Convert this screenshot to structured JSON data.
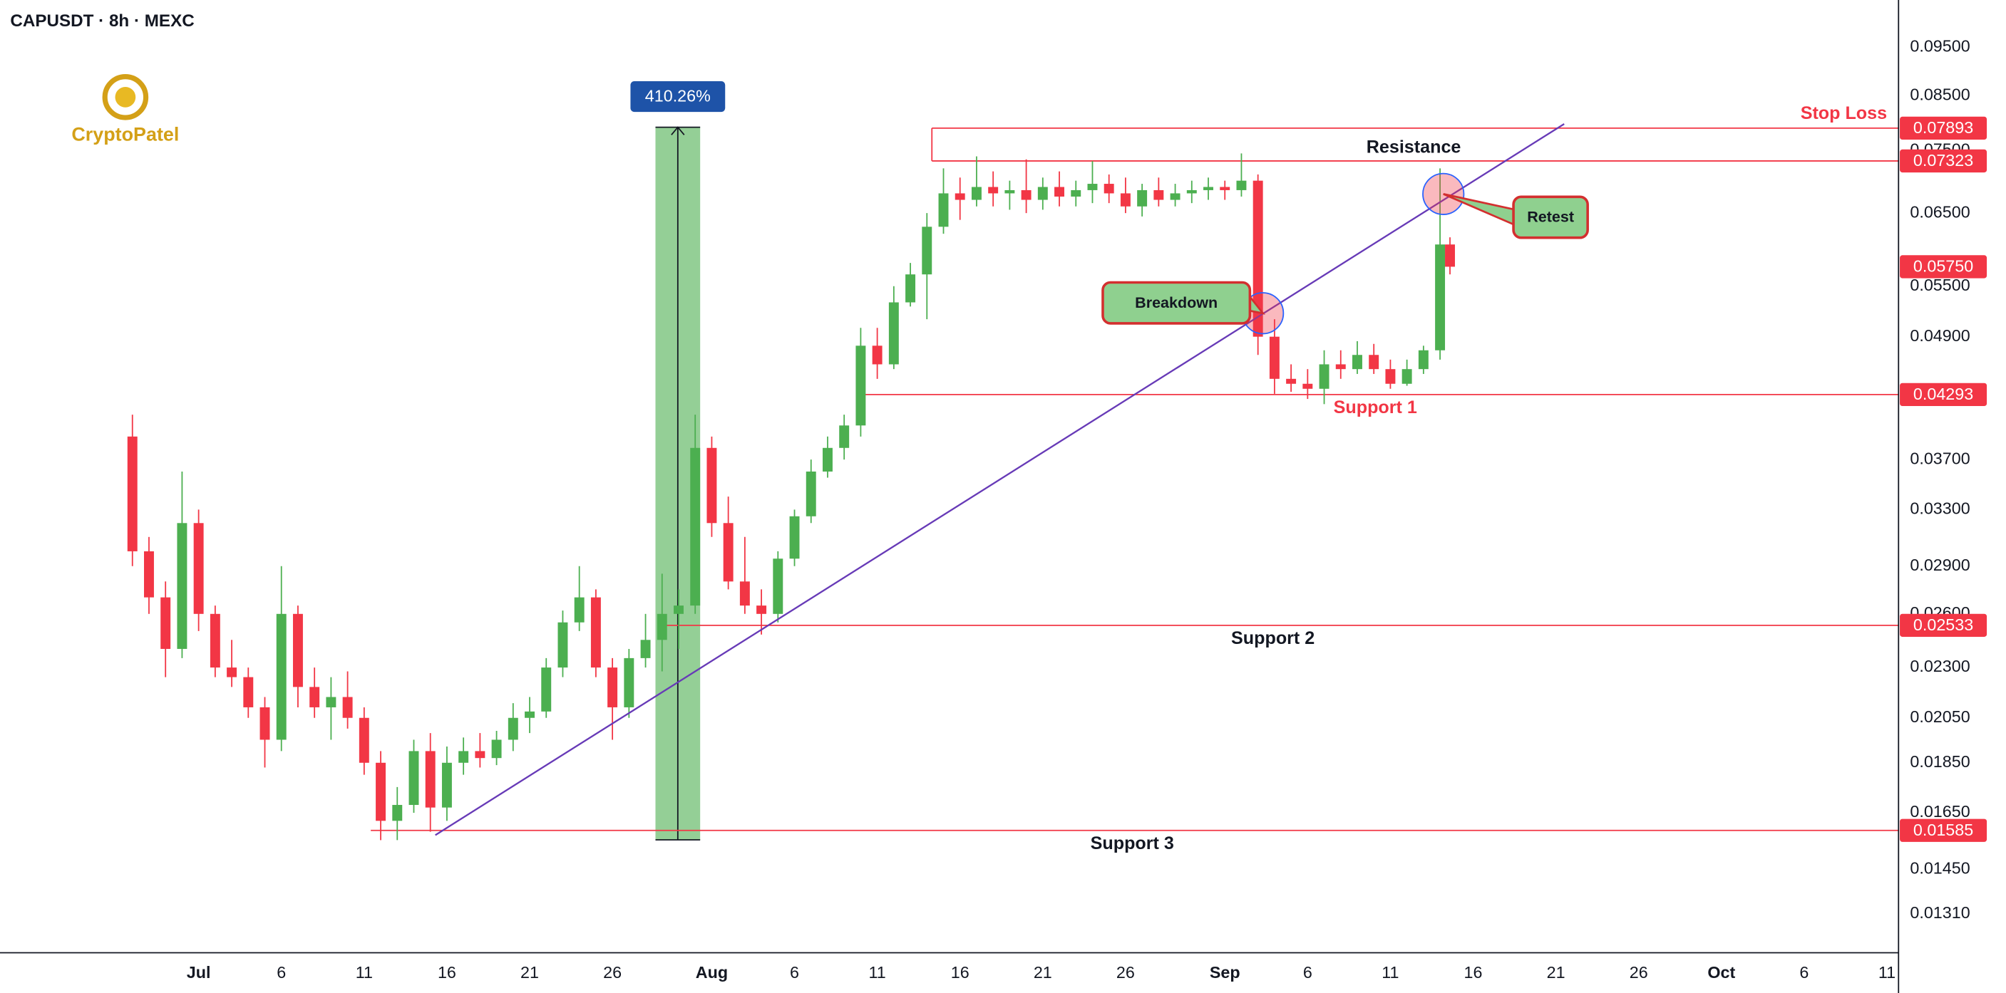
{
  "title": "CAPUSDT · 8h · MEXC",
  "logo": "CryptoPatel",
  "chart_data": {
    "type": "candlestick",
    "log_scale": true,
    "grid": false,
    "xlim": [
      -12,
      102.7
    ],
    "ylim": [
      0.012,
      0.1058
    ],
    "xticks": [
      {
        "value": 0,
        "label": "Jul"
      },
      {
        "value": 5,
        "label": "6"
      },
      {
        "value": 10,
        "label": "11"
      },
      {
        "value": 15,
        "label": "16"
      },
      {
        "value": 20,
        "label": "21"
      },
      {
        "value": 25,
        "label": "26"
      },
      {
        "value": 31,
        "label": "Aug"
      },
      {
        "value": 36,
        "label": "6"
      },
      {
        "value": 41,
        "label": "11"
      },
      {
        "value": 46,
        "label": "16"
      },
      {
        "value": 51,
        "label": "21"
      },
      {
        "value": 56,
        "label": "26"
      },
      {
        "value": 62,
        "label": "Sep"
      },
      {
        "value": 67,
        "label": "6"
      },
      {
        "value": 72,
        "label": "11"
      },
      {
        "value": 77,
        "label": "16"
      },
      {
        "value": 82,
        "label": "21"
      },
      {
        "value": 87,
        "label": "26"
      },
      {
        "value": 92,
        "label": "Oct"
      },
      {
        "value": 97,
        "label": "6"
      },
      {
        "value": 102,
        "label": "11"
      }
    ],
    "yticks": [
      {
        "value": 0.095,
        "label": "0.09500"
      },
      {
        "value": 0.085,
        "label": "0.08500"
      },
      {
        "value": 0.075,
        "label": "0.07500"
      },
      {
        "value": 0.065,
        "label": "0.06500"
      },
      {
        "value": 0.055,
        "label": "0.05500"
      },
      {
        "value": 0.049,
        "label": "0.04900"
      },
      {
        "value": 0.037,
        "label": "0.03700"
      },
      {
        "value": 0.033,
        "label": "0.03300"
      },
      {
        "value": 0.029,
        "label": "0.02900"
      },
      {
        "value": 0.026,
        "label": "0.02600"
      },
      {
        "value": 0.023,
        "label": "0.02300"
      },
      {
        "value": 0.0205,
        "label": "0.02050"
      },
      {
        "value": 0.0185,
        "label": "0.01850"
      },
      {
        "value": 0.0165,
        "label": "0.01650"
      },
      {
        "value": 0.0145,
        "label": "0.01450"
      },
      {
        "value": 0.0131,
        "label": "0.01310"
      }
    ],
    "up_color": "#4caf50",
    "down_color": "#f23645",
    "x": [
      -4,
      -3,
      -2,
      -1,
      0,
      1,
      2,
      3,
      4,
      5,
      6,
      7,
      8,
      9,
      10,
      11,
      12,
      13,
      14,
      15,
      16,
      17,
      18,
      19,
      20,
      21,
      22,
      23,
      24,
      25,
      26,
      27,
      28,
      29,
      30,
      31,
      32,
      33,
      34,
      35,
      36,
      37,
      38,
      39,
      40,
      41,
      42,
      43,
      44,
      45,
      46,
      47,
      48,
      49,
      50,
      51,
      52,
      53,
      54,
      55,
      56,
      57,
      58,
      59,
      60,
      61,
      62,
      63,
      64,
      65,
      66,
      67,
      68,
      69,
      70,
      71,
      72,
      73,
      74,
      75,
      75.6
    ],
    "open": [
      0.039,
      0.03,
      0.027,
      0.024,
      0.032,
      0.026,
      0.023,
      0.0225,
      0.021,
      0.0195,
      0.026,
      0.022,
      0.021,
      0.0215,
      0.0205,
      0.0185,
      0.0162,
      0.0168,
      0.019,
      0.0167,
      0.0185,
      0.019,
      0.0187,
      0.0195,
      0.0205,
      0.0208,
      0.023,
      0.0255,
      0.027,
      0.023,
      0.021,
      0.0235,
      0.0245,
      0.026,
      0.0265,
      0.038,
      0.032,
      0.028,
      0.0265,
      0.026,
      0.0295,
      0.0325,
      0.036,
      0.038,
      0.04,
      0.048,
      0.046,
      0.053,
      0.0565,
      0.063,
      0.068,
      0.067,
      0.069,
      0.068,
      0.0685,
      0.067,
      0.069,
      0.0675,
      0.0685,
      0.0695,
      0.068,
      0.066,
      0.0685,
      0.067,
      0.068,
      0.0685,
      0.069,
      0.0685,
      0.07,
      0.049,
      0.0445,
      0.044,
      0.0435,
      0.046,
      0.0455,
      0.047,
      0.0455,
      0.044,
      0.0455,
      0.0475,
      0.0605
    ],
    "high": [
      0.041,
      0.031,
      0.028,
      0.036,
      0.033,
      0.0265,
      0.0245,
      0.023,
      0.0215,
      0.029,
      0.0265,
      0.023,
      0.0225,
      0.0228,
      0.021,
      0.019,
      0.0175,
      0.0195,
      0.0198,
      0.0192,
      0.0196,
      0.0198,
      0.0199,
      0.0212,
      0.0215,
      0.0235,
      0.0262,
      0.029,
      0.0275,
      0.0235,
      0.024,
      0.026,
      0.0285,
      0.0275,
      0.041,
      0.039,
      0.034,
      0.031,
      0.0275,
      0.03,
      0.033,
      0.037,
      0.039,
      0.041,
      0.05,
      0.05,
      0.055,
      0.058,
      0.065,
      0.072,
      0.0705,
      0.074,
      0.0715,
      0.07,
      0.0735,
      0.0705,
      0.0715,
      0.07,
      0.0732,
      0.071,
      0.0705,
      0.0695,
      0.0705,
      0.0695,
      0.07,
      0.0705,
      0.07,
      0.0745,
      0.071,
      0.051,
      0.046,
      0.0455,
      0.0475,
      0.0475,
      0.0485,
      0.0482,
      0.0465,
      0.0465,
      0.048,
      0.072,
      0.0615
    ],
    "low": [
      0.029,
      0.026,
      0.0225,
      0.0235,
      0.025,
      0.0225,
      0.022,
      0.0205,
      0.0183,
      0.019,
      0.021,
      0.0205,
      0.0195,
      0.02,
      0.018,
      0.0155,
      0.0155,
      0.0165,
      0.0158,
      0.0162,
      0.018,
      0.0183,
      0.0184,
      0.019,
      0.0198,
      0.0205,
      0.0225,
      0.025,
      0.0225,
      0.0195,
      0.0205,
      0.023,
      0.0228,
      0.024,
      0.026,
      0.031,
      0.0275,
      0.026,
      0.0248,
      0.0255,
      0.029,
      0.032,
      0.0355,
      0.037,
      0.039,
      0.0445,
      0.0455,
      0.0525,
      0.051,
      0.062,
      0.064,
      0.066,
      0.066,
      0.0655,
      0.065,
      0.0655,
      0.066,
      0.066,
      0.0665,
      0.0665,
      0.065,
      0.0645,
      0.066,
      0.066,
      0.0665,
      0.067,
      0.067,
      0.0675,
      0.047,
      0.043,
      0.0432,
      0.0425,
      0.042,
      0.0445,
      0.045,
      0.045,
      0.0435,
      0.0438,
      0.045,
      0.0465,
      0.0565
    ],
    "close": [
      0.03,
      0.027,
      0.024,
      0.032,
      0.026,
      0.023,
      0.0225,
      0.021,
      0.0195,
      0.026,
      0.022,
      0.021,
      0.0215,
      0.0205,
      0.0185,
      0.0162,
      0.0168,
      0.019,
      0.0167,
      0.0185,
      0.019,
      0.0187,
      0.0195,
      0.0205,
      0.0208,
      0.023,
      0.0255,
      0.027,
      0.023,
      0.021,
      0.0235,
      0.0245,
      0.026,
      0.0265,
      0.038,
      0.032,
      0.028,
      0.0265,
      0.026,
      0.0295,
      0.0325,
      0.036,
      0.038,
      0.04,
      0.048,
      0.046,
      0.053,
      0.0565,
      0.063,
      0.068,
      0.067,
      0.069,
      0.068,
      0.0685,
      0.067,
      0.069,
      0.0675,
      0.0685,
      0.0695,
      0.068,
      0.066,
      0.0685,
      0.067,
      0.068,
      0.0685,
      0.069,
      0.0685,
      0.07,
      0.049,
      0.0445,
      0.044,
      0.0435,
      0.046,
      0.0455,
      0.047,
      0.0455,
      0.044,
      0.0455,
      0.0475,
      0.0605,
      0.0575
    ],
    "last_price": {
      "value": 0.0575,
      "label": "0.05750"
    },
    "levels": [
      {
        "name": "Stop Loss",
        "value": 0.07893,
        "x_start": 44.3,
        "label_color": "#f23645"
      },
      {
        "name": "Resistance",
        "value": 0.07323,
        "x_start": 44.3,
        "label_color": "#131722"
      },
      {
        "name": "Support 1",
        "value": 0.04293,
        "x_start": 39.8,
        "label_color": "#f23645"
      },
      {
        "name": "Support 2",
        "value": 0.02533,
        "x_start": 28.2,
        "label_color": "#131722"
      },
      {
        "name": "Support 3",
        "value": 0.01585,
        "x_start": 10.4,
        "label_color": "#131722"
      }
    ],
    "level_color": "#f23645",
    "trendline": {
      "x": [
        14.3,
        82.5
      ],
      "y": [
        0.01568,
        0.0797
      ],
      "color": "#673ab7"
    },
    "measure": {
      "x": [
        27.6,
        30.3
      ],
      "y": [
        0.01551,
        0.0791
      ],
      "label": "410.26%"
    },
    "callouts": [
      {
        "label": "Breakdown",
        "x": 64.3,
        "y": 0.0517
      },
      {
        "label": "Retest",
        "x": 75.2,
        "y": 0.0679
      }
    ]
  }
}
